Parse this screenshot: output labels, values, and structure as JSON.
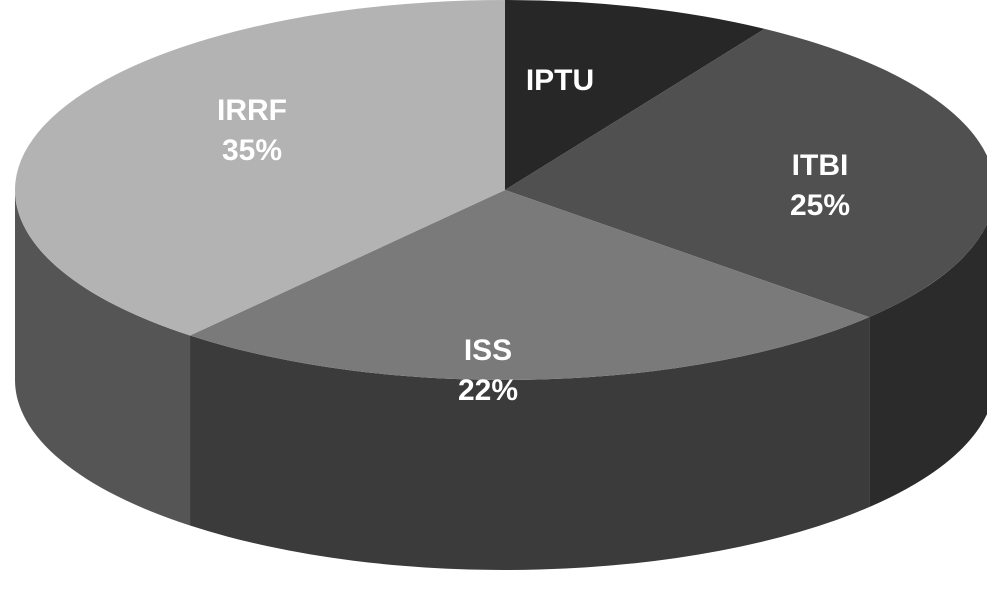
{
  "chart_data": {
    "type": "pie",
    "style": "3d",
    "categories": [
      "IPTU",
      "ITBI",
      "ISS",
      "IRRF"
    ],
    "values": [
      8,
      25,
      22,
      35
    ],
    "data_labels": [
      "",
      "25%",
      "22%",
      "35%"
    ],
    "colors": {
      "IPTU": "#272727",
      "ITBI": "#505050",
      "ISS": "#7a7a7a",
      "IRRF": "#b3b3b3"
    },
    "label_color": "#ffffff",
    "side_colors": [
      "#1a1a1a",
      "#2b2b2b",
      "#3b3b3b",
      "#555555"
    ]
  }
}
